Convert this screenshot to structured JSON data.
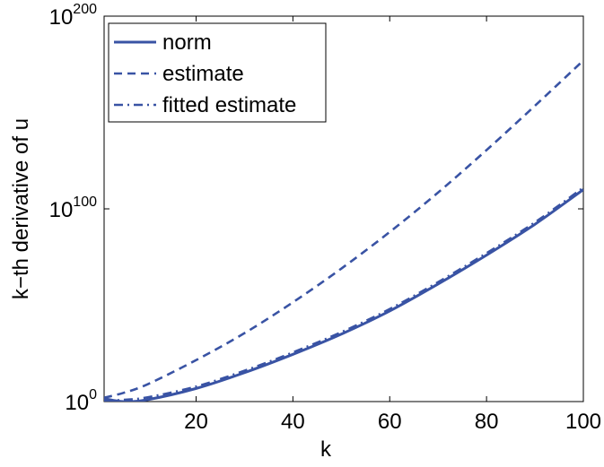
{
  "chart_data": {
    "type": "line",
    "xlabel": "k",
    "ylabel": "k−th derivative of u",
    "x_range": [
      1,
      100
    ],
    "y_log_range": [
      0,
      200
    ],
    "y_scale": "log",
    "x_ticks": [
      {
        "value": 20,
        "label": "20"
      },
      {
        "value": 40,
        "label": "40"
      },
      {
        "value": 60,
        "label": "60"
      },
      {
        "value": 80,
        "label": "80"
      },
      {
        "value": 100,
        "label": "100"
      }
    ],
    "y_ticks": [
      {
        "exp": 0,
        "base": "10",
        "sup": "0"
      },
      {
        "exp": 100,
        "base": "10",
        "sup": "100"
      },
      {
        "exp": 200,
        "base": "10",
        "sup": "200"
      }
    ],
    "grid": false,
    "legend_position": "top-left",
    "series": [
      {
        "name": "norm",
        "style": "solid",
        "color": "#3953a4",
        "x": [
          1,
          5,
          10,
          20,
          30,
          40,
          50,
          60,
          70,
          80,
          90,
          100
        ],
        "log10_y": [
          1.5,
          0,
          1,
          6.8,
          15,
          24.5,
          35,
          47,
          61,
          76,
          92,
          110
        ]
      },
      {
        "name": "estimate",
        "style": "dashed",
        "color": "#3953a4",
        "x": [
          1,
          5,
          10,
          20,
          30,
          40,
          50,
          60,
          70,
          80,
          90,
          100
        ],
        "log10_y": [
          2,
          4.5,
          9,
          21.5,
          35.5,
          51.5,
          69,
          88,
          108.5,
          130.5,
          153.5,
          177
        ]
      },
      {
        "name": "fitted estimate",
        "style": "dashdot",
        "color": "#3953a4",
        "x": [
          1,
          5,
          10,
          20,
          30,
          40,
          50,
          60,
          70,
          80,
          90,
          100
        ],
        "log10_y": [
          0.3,
          0.9,
          2.2,
          7.8,
          16,
          25.5,
          36,
          48,
          62,
          77,
          93,
          111
        ]
      }
    ]
  }
}
